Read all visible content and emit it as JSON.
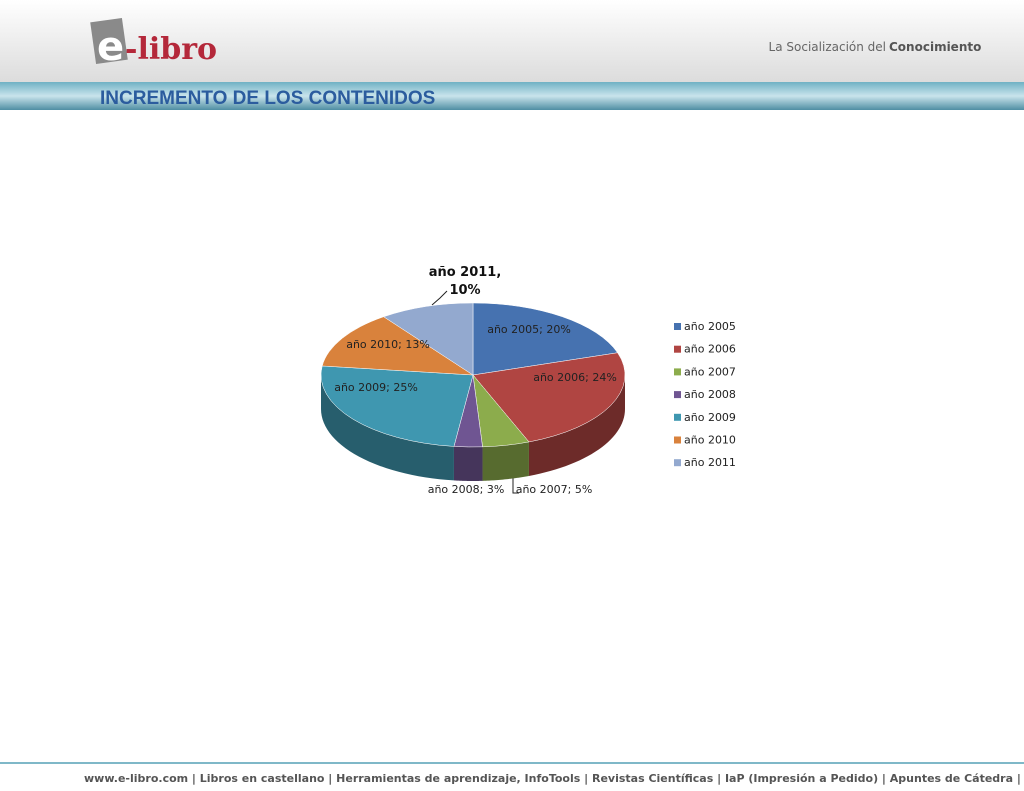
{
  "header": {
    "logo_e": "e",
    "logo_rest": "-libro",
    "tagline": "La Socialización del",
    "tagline_bold": "Conocimiento",
    "title": "INCREMENTO DE LOS CONTENIDOS"
  },
  "chart_data": {
    "type": "pie",
    "categories": [
      "año 2005",
      "año 2006",
      "año 2007",
      "año 2008",
      "año 2009",
      "año 2010",
      "año 2011"
    ],
    "values": [
      20,
      24,
      5,
      3,
      25,
      13,
      10
    ],
    "value_labels": [
      "año 2005; 20%",
      "año 2006; 24%",
      "año 2007; 5%",
      "año 2008; 3%",
      "año 2009; 25%",
      "año 2010; 13%",
      "año 2011, 10%"
    ],
    "colors": [
      "#4672b0",
      "#b04542",
      "#8cac4c",
      "#6f5592",
      "#3f97b0",
      "#d9823c",
      "#93a9cf"
    ],
    "legend": "right"
  },
  "footer": {
    "text": "www.e-libro.com | Libros en castellano | Herramientas de aprendizaje, InfoTools | Revistas Científicas | IaP (Impresión a Pedido) | Apuntes de Cátedra | Tesis |"
  }
}
